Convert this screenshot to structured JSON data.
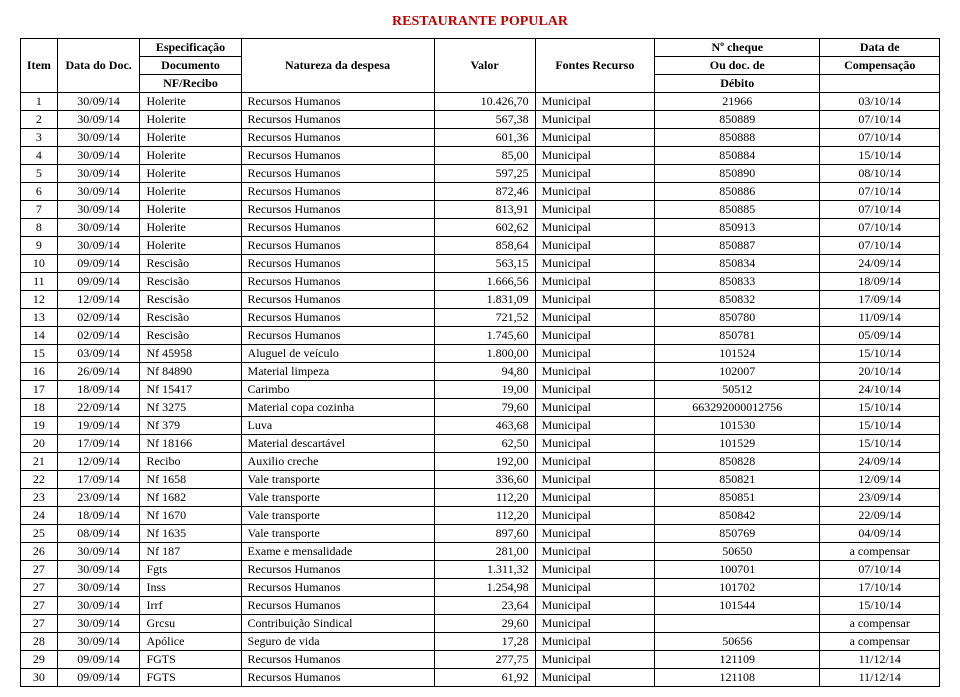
{
  "title": "RESTAURANTE POPULAR",
  "headers": {
    "item": "Item",
    "data_doc": "Data do Doc.",
    "espec1": "Especificação",
    "espec2": "Documento",
    "espec3": "NF/Recibo",
    "natureza": "Natureza da despesa",
    "valor": "Valor",
    "fontes": "Fontes Recurso",
    "cheque1": "Nº cheque",
    "cheque2": "Ou doc. de",
    "cheque3": "Débito",
    "comp1": "Data de",
    "comp2": "Compensação"
  },
  "rows": [
    {
      "item": "1",
      "data": "30/09/14",
      "espec": "Holerite",
      "nat": "Recursos Humanos",
      "valor": "10.426,70",
      "fonte": "Municipal",
      "cheque": "21966",
      "comp": "03/10/14"
    },
    {
      "item": "2",
      "data": "30/09/14",
      "espec": "Holerite",
      "nat": "Recursos Humanos",
      "valor": "567,38",
      "fonte": "Municipal",
      "cheque": "850889",
      "comp": "07/10/14"
    },
    {
      "item": "3",
      "data": "30/09/14",
      "espec": "Holerite",
      "nat": "Recursos Humanos",
      "valor": "601,36",
      "fonte": "Municipal",
      "cheque": "850888",
      "comp": "07/10/14"
    },
    {
      "item": "4",
      "data": "30/09/14",
      "espec": "Holerite",
      "nat": "Recursos Humanos",
      "valor": "85,00",
      "fonte": "Municipal",
      "cheque": "850884",
      "comp": "15/10/14"
    },
    {
      "item": "5",
      "data": "30/09/14",
      "espec": "Holerite",
      "nat": "Recursos Humanos",
      "valor": "597,25",
      "fonte": "Municipal",
      "cheque": "850890",
      "comp": "08/10/14"
    },
    {
      "item": "6",
      "data": "30/09/14",
      "espec": "Holerite",
      "nat": "Recursos Humanos",
      "valor": "872,46",
      "fonte": "Municipal",
      "cheque": "850886",
      "comp": "07/10/14"
    },
    {
      "item": "7",
      "data": "30/09/14",
      "espec": "Holerite",
      "nat": "Recursos Humanos",
      "valor": "813,91",
      "fonte": "Municipal",
      "cheque": "850885",
      "comp": "07/10/14"
    },
    {
      "item": "8",
      "data": "30/09/14",
      "espec": "Holerite",
      "nat": "Recursos Humanos",
      "valor": "602,62",
      "fonte": "Municipal",
      "cheque": "850913",
      "comp": "07/10/14"
    },
    {
      "item": "9",
      "data": "30/09/14",
      "espec": "Holerite",
      "nat": "Recursos Humanos",
      "valor": "858,64",
      "fonte": "Municipal",
      "cheque": "850887",
      "comp": "07/10/14"
    },
    {
      "item": "10",
      "data": "09/09/14",
      "espec": "Rescisão",
      "nat": "Recursos Humanos",
      "valor": "563,15",
      "fonte": "Municipal",
      "cheque": "850834",
      "comp": "24/09/14"
    },
    {
      "item": "11",
      "data": "09/09/14",
      "espec": "Rescisão",
      "nat": "Recursos Humanos",
      "valor": "1.666,56",
      "fonte": "Municipal",
      "cheque": "850833",
      "comp": "18/09/14"
    },
    {
      "item": "12",
      "data": "12/09/14",
      "espec": "Rescisão",
      "nat": "Recursos Humanos",
      "valor": "1.831,09",
      "fonte": "Municipal",
      "cheque": "850832",
      "comp": "17/09/14"
    },
    {
      "item": "13",
      "data": "02/09/14",
      "espec": "Rescisão",
      "nat": "Recursos Humanos",
      "valor": "721,52",
      "fonte": "Municipal",
      "cheque": "850780",
      "comp": "11/09/14"
    },
    {
      "item": "14",
      "data": "02/09/14",
      "espec": "Rescisão",
      "nat": "Recursos Humanos",
      "valor": "1.745,60",
      "fonte": "Municipal",
      "cheque": "850781",
      "comp": "05/09/14"
    },
    {
      "item": "15",
      "data": "03/09/14",
      "espec": "Nf 45958",
      "nat": "Aluguel de veículo",
      "valor": "1.800,00",
      "fonte": "Municipal",
      "cheque": "101524",
      "comp": "15/10/14"
    },
    {
      "item": "16",
      "data": "26/09/14",
      "espec": "Nf 84890",
      "nat": "Material limpeza",
      "valor": "94,80",
      "fonte": "Municipal",
      "cheque": "102007",
      "comp": "20/10/14"
    },
    {
      "item": "17",
      "data": "18/09/14",
      "espec": "Nf 15417",
      "nat": "Carimbo",
      "valor": "19,00",
      "fonte": "Municipal",
      "cheque": "50512",
      "comp": "24/10/14"
    },
    {
      "item": "18",
      "data": "22/09/14",
      "espec": "Nf 3275",
      "nat": "Material copa cozinha",
      "valor": "79,60",
      "fonte": "Municipal",
      "cheque": "663292000012756",
      "comp": "15/10/14"
    },
    {
      "item": "19",
      "data": "19/09/14",
      "espec": "Nf 379",
      "nat": "Luva",
      "valor": "463,68",
      "fonte": "Municipal",
      "cheque": "101530",
      "comp": "15/10/14"
    },
    {
      "item": "20",
      "data": "17/09/14",
      "espec": "Nf 18166",
      "nat": "Material descartável",
      "valor": "62,50",
      "fonte": "Municipal",
      "cheque": "101529",
      "comp": "15/10/14"
    },
    {
      "item": "21",
      "data": "12/09/14",
      "espec": "Recibo",
      "nat": "Auxilio creche",
      "valor": "192,00",
      "fonte": "Municipal",
      "cheque": "850828",
      "comp": "24/09/14"
    },
    {
      "item": "22",
      "data": "17/09/14",
      "espec": "Nf 1658",
      "nat": "Vale transporte",
      "valor": "336,60",
      "fonte": "Municipal",
      "cheque": "850821",
      "comp": "12/09/14"
    },
    {
      "item": "23",
      "data": "23/09/14",
      "espec": "Nf 1682",
      "nat": "Vale transporte",
      "valor": "112,20",
      "fonte": "Municipal",
      "cheque": "850851",
      "comp": "23/09/14"
    },
    {
      "item": "24",
      "data": "18/09/14",
      "espec": "Nf 1670",
      "nat": "Vale transporte",
      "valor": "112,20",
      "fonte": "Municipal",
      "cheque": "850842",
      "comp": "22/09/14"
    },
    {
      "item": "25",
      "data": "08/09/14",
      "espec": "Nf 1635",
      "nat": "Vale transporte",
      "valor": "897,60",
      "fonte": "Municipal",
      "cheque": "850769",
      "comp": "04/09/14"
    },
    {
      "item": "26",
      "data": "30/09/14",
      "espec": "Nf 187",
      "nat": "Exame e mensalidade",
      "valor": "281,00",
      "fonte": "Municipal",
      "cheque": "50650",
      "comp": "a compensar"
    },
    {
      "item": "27",
      "data": "30/09/14",
      "espec": "Fgts",
      "nat": "Recursos Humanos",
      "valor": "1.311,32",
      "fonte": "Municipal",
      "cheque": "100701",
      "comp": "07/10/14"
    },
    {
      "item": "27",
      "data": "30/09/14",
      "espec": "Inss",
      "nat": "Recursos Humanos",
      "valor": "1.254,98",
      "fonte": "Municipal",
      "cheque": "101702",
      "comp": "17/10/14"
    },
    {
      "item": "27",
      "data": "30/09/14",
      "espec": "Irrf",
      "nat": "Recursos Humanos",
      "valor": "23,64",
      "fonte": "Municipal",
      "cheque": "101544",
      "comp": "15/10/14"
    },
    {
      "item": "27",
      "data": "30/09/14",
      "espec": "Grcsu",
      "nat": "Contribuição Sindical",
      "valor": "29,60",
      "fonte": "Municipal",
      "cheque": "",
      "comp": "a compensar"
    },
    {
      "item": "28",
      "data": "30/09/14",
      "espec": "Apólice",
      "nat": "Seguro de vida",
      "valor": "17,28",
      "fonte": "Municipal",
      "cheque": "50656",
      "comp": "a compensar"
    },
    {
      "item": "29",
      "data": "09/09/14",
      "espec": "FGTS",
      "nat": "Recursos Humanos",
      "valor": "277,75",
      "fonte": "Municipal",
      "cheque": "121109",
      "comp": "11/12/14"
    },
    {
      "item": "30",
      "data": "09/09/14",
      "espec": "FGTS",
      "nat": "Recursos Humanos",
      "valor": "61,92",
      "fonte": "Municipal",
      "cheque": "121108",
      "comp": "11/12/14"
    }
  ]
}
